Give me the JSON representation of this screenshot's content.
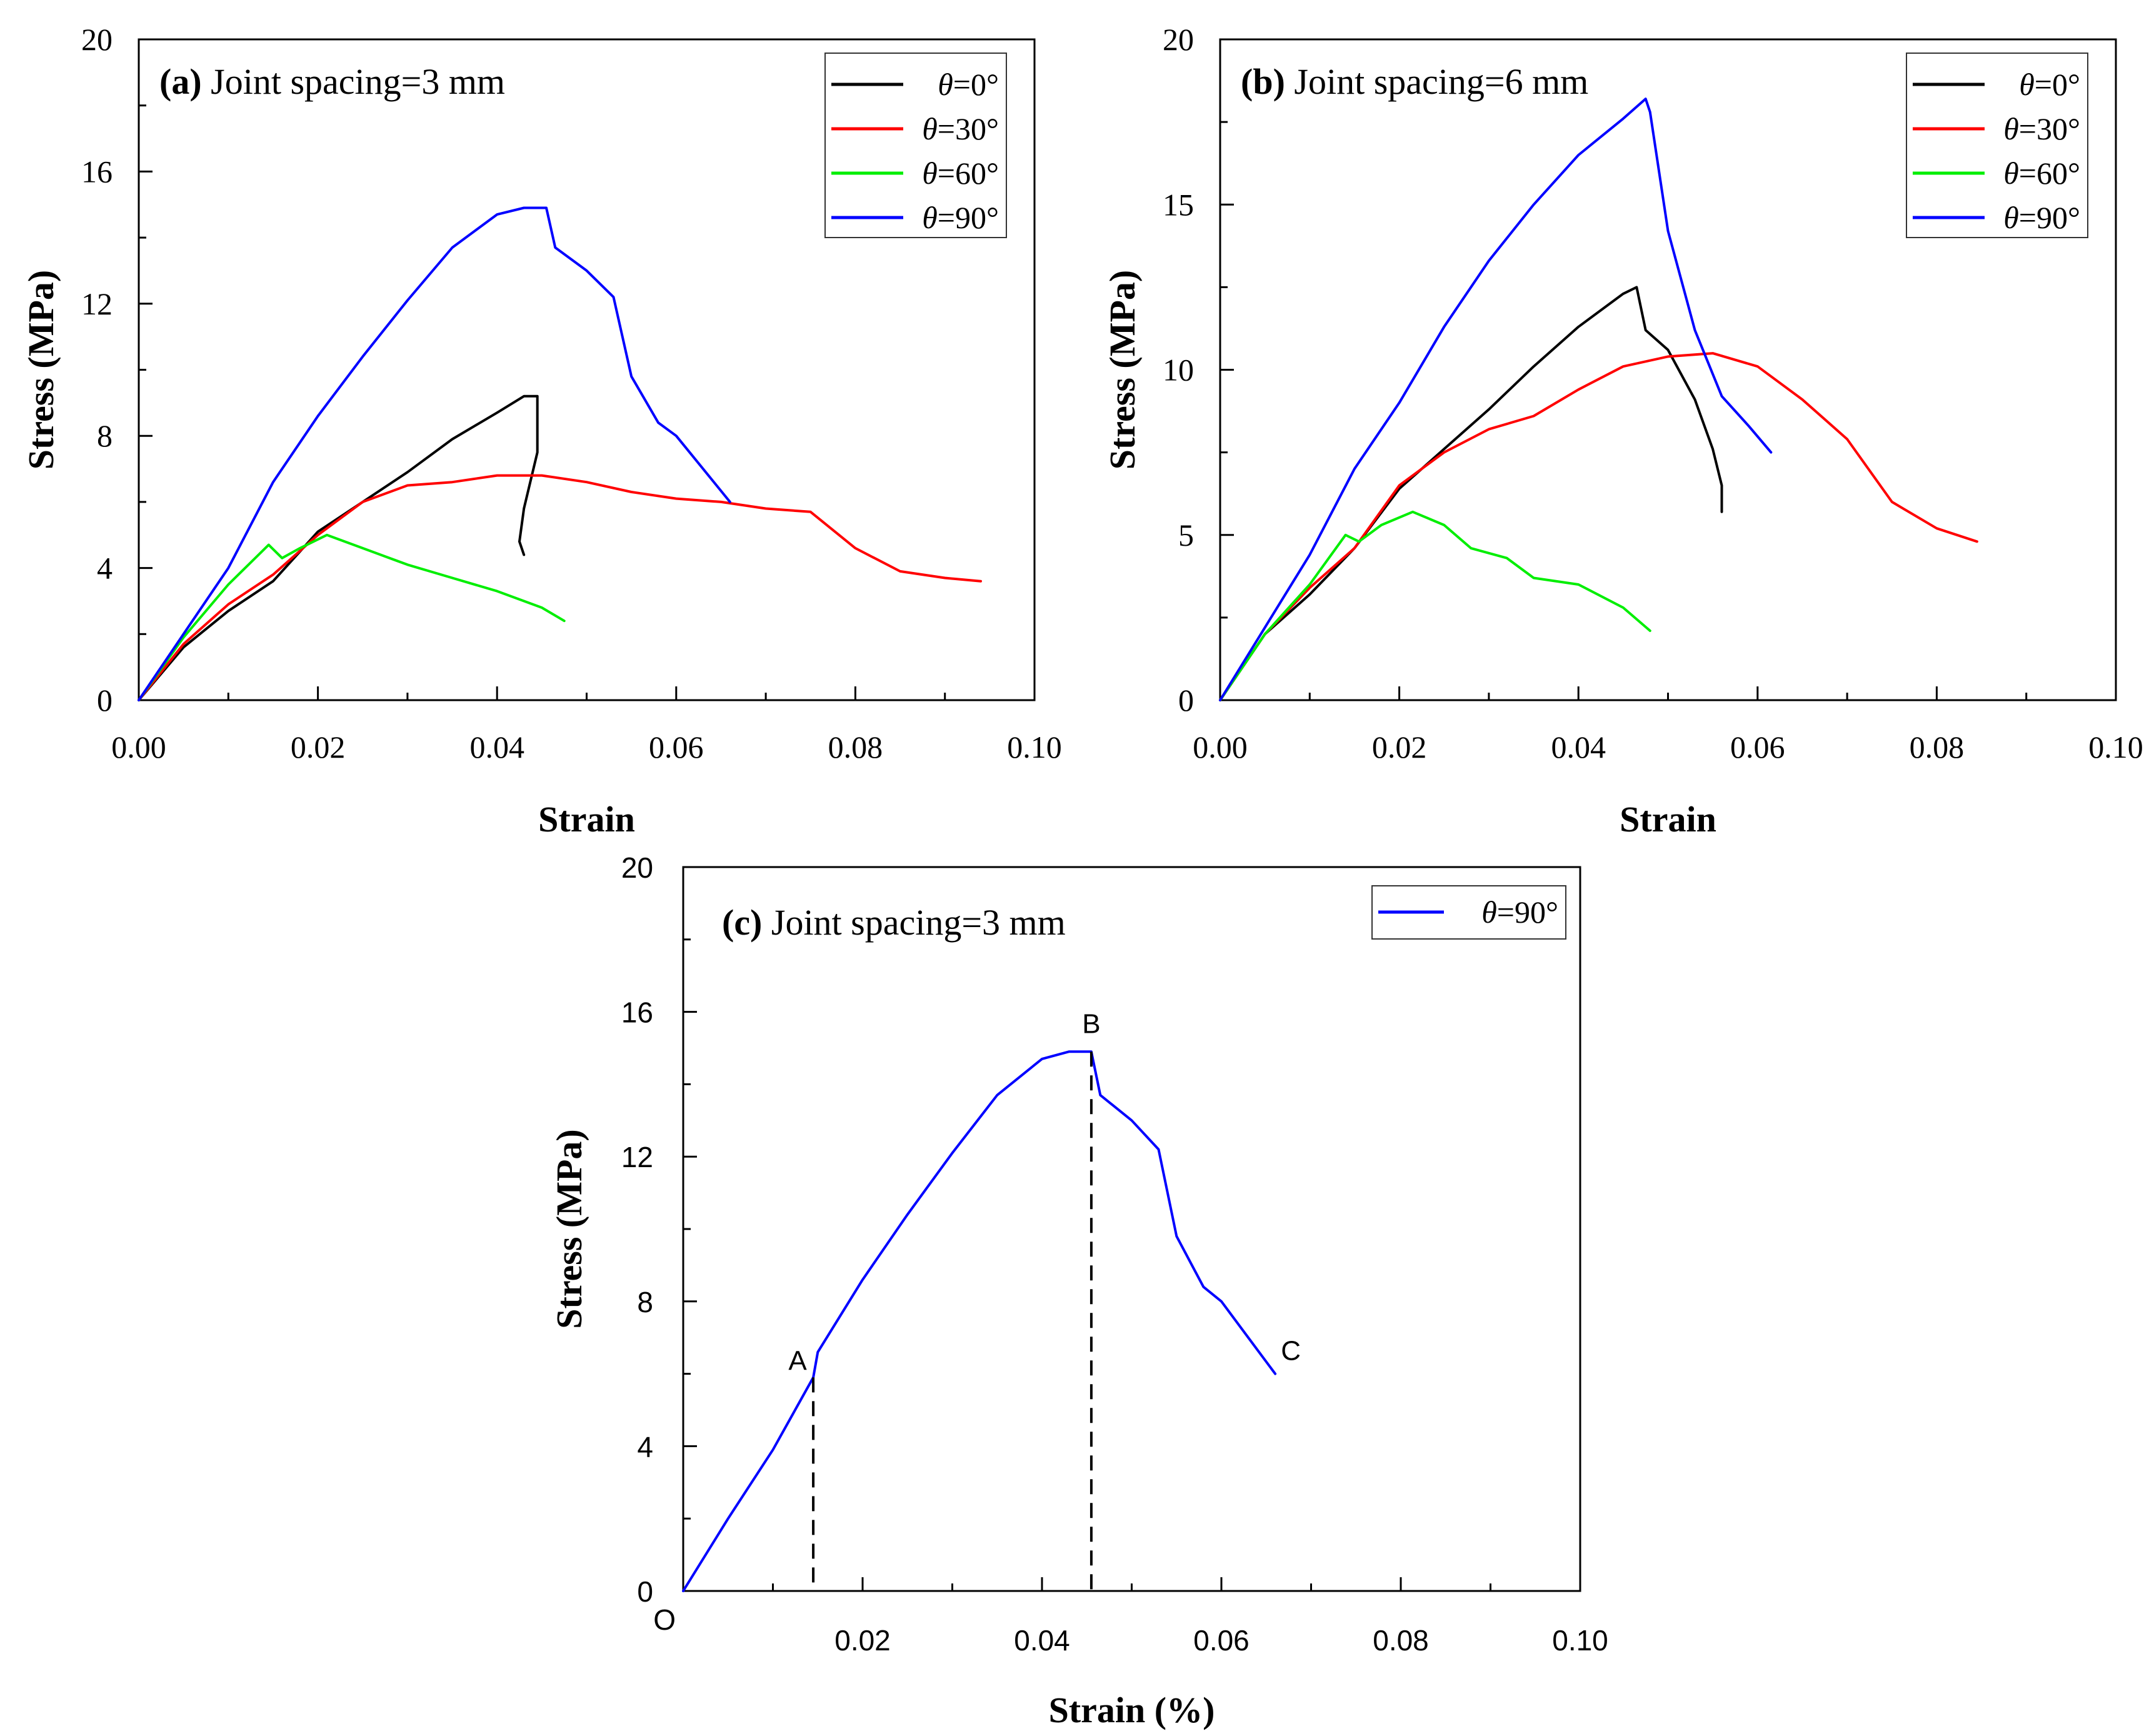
{
  "chart_data": [
    {
      "id": "a",
      "type": "line",
      "tag": "(a)",
      "title": "Joint spacing=3 mm",
      "xlabel": "Strain",
      "ylabel": "Stress (MPa)",
      "xlim": [
        0,
        0.1
      ],
      "ylim": [
        0,
        20
      ],
      "xticks": [
        "0.00",
        "0.02",
        "0.04",
        "0.06",
        "0.08",
        "0.10"
      ],
      "yticks": [
        "0",
        "4",
        "8",
        "12",
        "16",
        "20"
      ],
      "legend_position": "top-right",
      "series": [
        {
          "name": "θ=0°",
          "theta": "θ",
          "value_label": "=0°",
          "color": "#000000",
          "x": [
            0,
            0.005,
            0.01,
            0.015,
            0.02,
            0.025,
            0.03,
            0.035,
            0.04,
            0.043,
            0.0445,
            0.0445,
            0.043,
            0.0425,
            0.043
          ],
          "y": [
            0,
            1.6,
            2.7,
            3.6,
            5.1,
            6.0,
            6.9,
            7.9,
            8.7,
            9.2,
            9.2,
            7.5,
            5.8,
            4.8,
            4.4
          ]
        },
        {
          "name": "θ=30°",
          "theta": "θ",
          "value_label": "=30°",
          "color": "#ff0000",
          "x": [
            0,
            0.005,
            0.01,
            0.015,
            0.02,
            0.025,
            0.03,
            0.035,
            0.04,
            0.045,
            0.05,
            0.055,
            0.06,
            0.065,
            0.07,
            0.075,
            0.08,
            0.085,
            0.09,
            0.094
          ],
          "y": [
            0,
            1.7,
            2.9,
            3.8,
            5.0,
            6.0,
            6.5,
            6.6,
            6.8,
            6.8,
            6.6,
            6.3,
            6.1,
            6.0,
            5.8,
            5.7,
            4.6,
            3.9,
            3.7,
            3.6
          ]
        },
        {
          "name": "θ=60°",
          "theta": "θ",
          "value_label": "=60°",
          "color": "#00ee00",
          "x": [
            0,
            0.005,
            0.01,
            0.0145,
            0.016,
            0.018,
            0.021,
            0.025,
            0.03,
            0.035,
            0.04,
            0.045,
            0.0475
          ],
          "y": [
            0,
            1.9,
            3.5,
            4.7,
            4.3,
            4.6,
            5.0,
            4.6,
            4.1,
            3.7,
            3.3,
            2.8,
            2.4
          ]
        },
        {
          "name": "θ=90°",
          "theta": "θ",
          "value_label": "=90°",
          "color": "#0000ff",
          "x": [
            0,
            0.005,
            0.01,
            0.015,
            0.02,
            0.025,
            0.03,
            0.035,
            0.04,
            0.043,
            0.0455,
            0.0465,
            0.05,
            0.053,
            0.055,
            0.058,
            0.06,
            0.063,
            0.066
          ],
          "y": [
            0,
            2.0,
            4.0,
            6.6,
            8.6,
            10.4,
            12.1,
            13.7,
            14.7,
            14.9,
            14.9,
            13.7,
            13.0,
            12.2,
            9.8,
            8.4,
            8.0,
            7.0,
            6.0
          ]
        }
      ]
    },
    {
      "id": "b",
      "type": "line",
      "tag": "(b)",
      "title": "Joint spacing=6 mm",
      "xlabel": "Strain",
      "ylabel": "Stress (MPa)",
      "xlim": [
        0,
        0.1
      ],
      "ylim": [
        0,
        20
      ],
      "xticks": [
        "0.00",
        "0.02",
        "0.04",
        "0.06",
        "0.08",
        "0.10"
      ],
      "yticks": [
        "0",
        "5",
        "10",
        "15",
        "20"
      ],
      "legend_position": "top-right",
      "series": [
        {
          "name": "θ=0°",
          "theta": "θ",
          "value_label": "=0°",
          "color": "#000000",
          "x": [
            0,
            0.005,
            0.01,
            0.015,
            0.02,
            0.025,
            0.03,
            0.035,
            0.04,
            0.045,
            0.0465,
            0.0475,
            0.05,
            0.053,
            0.055,
            0.056,
            0.056
          ],
          "y": [
            0,
            2.0,
            3.2,
            4.6,
            6.4,
            7.6,
            8.8,
            10.1,
            11.3,
            12.3,
            12.5,
            11.2,
            10.6,
            9.1,
            7.6,
            6.5,
            5.7
          ]
        },
        {
          "name": "θ=30°",
          "theta": "θ",
          "value_label": "=30°",
          "color": "#ff0000",
          "x": [
            0,
            0.005,
            0.01,
            0.015,
            0.02,
            0.025,
            0.03,
            0.035,
            0.04,
            0.045,
            0.05,
            0.055,
            0.06,
            0.065,
            0.07,
            0.075,
            0.08,
            0.0845
          ],
          "y": [
            0,
            2.0,
            3.4,
            4.6,
            6.5,
            7.5,
            8.2,
            8.6,
            9.4,
            10.1,
            10.4,
            10.5,
            10.1,
            9.1,
            7.9,
            6.0,
            5.2,
            4.8
          ]
        },
        {
          "name": "θ=60°",
          "theta": "θ",
          "value_label": "=60°",
          "color": "#00ee00",
          "x": [
            0,
            0.005,
            0.01,
            0.014,
            0.0155,
            0.018,
            0.0215,
            0.025,
            0.028,
            0.032,
            0.035,
            0.04,
            0.045,
            0.048
          ],
          "y": [
            0,
            2.0,
            3.5,
            5.0,
            4.8,
            5.3,
            5.7,
            5.3,
            4.6,
            4.3,
            3.7,
            3.5,
            2.8,
            2.1
          ]
        },
        {
          "name": "θ=90°",
          "theta": "θ",
          "value_label": "=90°",
          "color": "#0000ff",
          "x": [
            0,
            0.005,
            0.01,
            0.015,
            0.02,
            0.025,
            0.03,
            0.035,
            0.04,
            0.045,
            0.0475,
            0.048,
            0.05,
            0.053,
            0.056,
            0.059,
            0.0615
          ],
          "y": [
            0,
            2.2,
            4.4,
            7.0,
            9.0,
            11.3,
            13.3,
            15.0,
            16.5,
            17.6,
            18.2,
            17.8,
            14.2,
            11.2,
            9.2,
            8.3,
            7.5
          ]
        }
      ]
    },
    {
      "id": "c",
      "type": "line",
      "tag": "(c)",
      "title": "Joint spacing=3 mm",
      "xlabel": "Strain (%)",
      "ylabel": "Stress (MPa)",
      "xlim": [
        0,
        0.1
      ],
      "ylim": [
        0,
        20
      ],
      "xticks": [
        "0.02",
        "0.04",
        "0.06",
        "0.08",
        "0.10"
      ],
      "yticks": [
        "0",
        "4",
        "8",
        "12",
        "16",
        "20"
      ],
      "origin_label": "O",
      "legend_position": "top-right",
      "series": [
        {
          "name": "θ=90°",
          "theta": "θ",
          "value_label": "=90°",
          "color": "#0000ff",
          "x": [
            0,
            0.005,
            0.01,
            0.0145,
            0.015,
            0.02,
            0.025,
            0.03,
            0.035,
            0.04,
            0.043,
            0.0455,
            0.0465,
            0.05,
            0.053,
            0.055,
            0.058,
            0.06,
            0.063,
            0.066
          ],
          "y": [
            0,
            2.0,
            3.9,
            5.9,
            6.6,
            8.6,
            10.4,
            12.1,
            13.7,
            14.7,
            14.9,
            14.9,
            13.7,
            13.0,
            12.2,
            9.8,
            8.4,
            8.0,
            7.0,
            6.0
          ]
        }
      ],
      "annotations": [
        {
          "label": "A",
          "x": 0.0145,
          "y": 5.9
        },
        {
          "label": "B",
          "x": 0.0455,
          "y": 14.9
        },
        {
          "label": "C",
          "x": 0.066,
          "y": 6.0
        }
      ]
    }
  ]
}
